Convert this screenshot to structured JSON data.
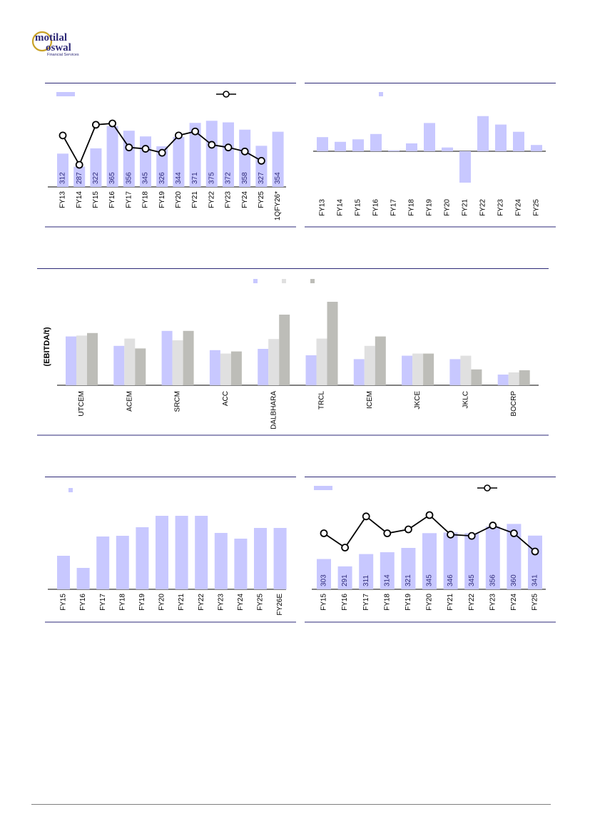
{
  "brand": {
    "logo_line1": "motilal",
    "logo_line2": "oswal",
    "logo_tagline": "Financial Services",
    "colors": {
      "navy": "#2e2a78",
      "gold": "#c9a227"
    }
  },
  "colors": {
    "bar_primary": "#c8c8ff",
    "bar_light_gray": "#e0e0e0",
    "bar_dark_gray": "#bdbdb8",
    "line": "#000000",
    "rule": "#2e2a78",
    "value_label": "#2e2a78"
  },
  "chart_data": [
    {
      "type": "bar+line",
      "categories": [
        "FY13",
        "FY14",
        "FY15",
        "FY16",
        "FY17",
        "FY18",
        "FY19",
        "FY20",
        "FY21",
        "FY22",
        "FY23",
        "FY24",
        "FY25",
        "1QFY26*"
      ],
      "series": [
        {
          "values": [
            312,
            287,
            322,
            365,
            356,
            345,
            326,
            344,
            371,
            375,
            372,
            358,
            327,
            354
          ],
          "data_labels": true
        },
        {
          "values": [
            2.7,
            1.6,
            3.1,
            3.15,
            2.25,
            2.2,
            2.05,
            2.7,
            2.85,
            2.35,
            2.25,
            2.1,
            1.75,
            null
          ]
        }
      ],
      "legend": "top",
      "grid": false
    },
    {
      "type": "bar",
      "categories": [
        "FY13",
        "FY14",
        "FY15",
        "FY16",
        "FY17",
        "FY18",
        "FY19",
        "FY20",
        "FY21",
        "FY22",
        "FY23",
        "FY24",
        "FY25"
      ],
      "series": [
        {
          "values": [
            4.5,
            3.0,
            3.8,
            5.5,
            0.3,
            2.5,
            9.0,
            1.2,
            -10.0,
            11.2,
            8.5,
            6.2,
            2.0
          ]
        }
      ],
      "legend": "top",
      "grid": false
    },
    {
      "type": "bar",
      "ylabel": "(EBITDA/t)",
      "categories": [
        "UTCEM",
        "ACEM",
        "SRCM",
        "ACC",
        "DALBHARA",
        "TRCL",
        "ICEM",
        "JKCE",
        "JKLC",
        "BOCRP"
      ],
      "series": [
        {
          "values": [
            1140,
            920,
            1270,
            820,
            850,
            700,
            610,
            690,
            610,
            250
          ]
        },
        {
          "values": [
            1160,
            1090,
            1050,
            740,
            1080,
            1090,
            920,
            740,
            690,
            300
          ]
        },
        {
          "values": [
            1220,
            860,
            1270,
            790,
            1650,
            1950,
            1140,
            740,
            370,
            350
          ]
        }
      ],
      "legend": "top-right",
      "grid": false
    },
    {
      "type": "bar",
      "categories": [
        "FY15",
        "FY16",
        "FY17",
        "FY18",
        "FY19",
        "FY20",
        "FY21",
        "FY22",
        "FY23",
        "FY24",
        "FY25",
        "FY26E"
      ],
      "series": [
        {
          "values": [
            47,
            30,
            74,
            75,
            87,
            103,
            103,
            103,
            79,
            71,
            86,
            86
          ]
        }
      ],
      "legend": "top-left",
      "grid": false
    },
    {
      "type": "bar+line",
      "categories": [
        "FY15",
        "FY16",
        "FY17",
        "FY18",
        "FY19",
        "FY20",
        "FY21",
        "FY22",
        "FY23",
        "FY24",
        "FY25"
      ],
      "series": [
        {
          "values": [
            303,
            291,
            311,
            314,
            321,
            345,
            346,
            345,
            356,
            360,
            341
          ],
          "data_labels": true
        },
        {
          "values": [
            5.2,
            4.1,
            6.5,
            5.2,
            5.5,
            6.6,
            5.1,
            5.0,
            5.8,
            5.2,
            3.8
          ]
        }
      ],
      "legend": "top",
      "grid": false
    }
  ]
}
